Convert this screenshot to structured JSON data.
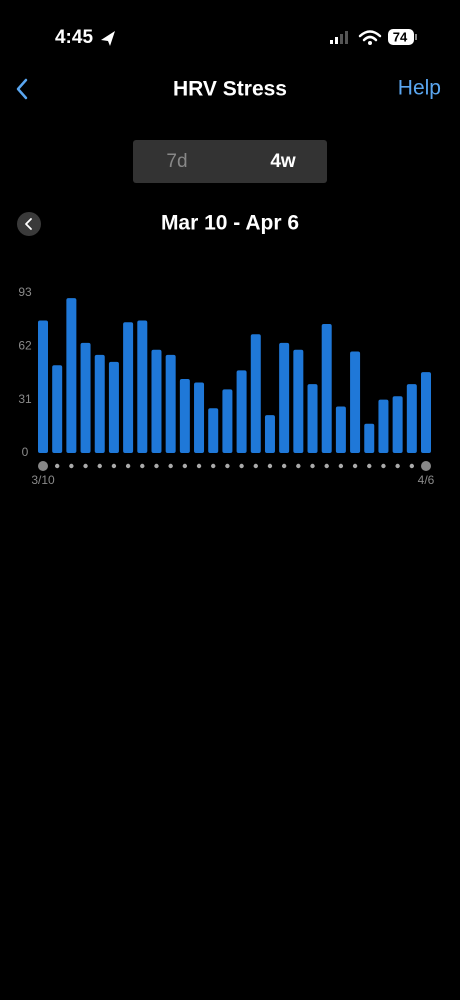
{
  "status_bar": {
    "time": "4:45",
    "battery": "74"
  },
  "header": {
    "title": "HRV Stress",
    "help": "Help"
  },
  "tabs": [
    "7d",
    "4w"
  ],
  "date_range": "Mar 10 - Apr 6",
  "chart_data": {
    "type": "bar",
    "categories": [
      "3/10",
      null,
      null,
      null,
      null,
      null,
      null,
      null,
      null,
      null,
      null,
      null,
      null,
      null,
      null,
      null,
      null,
      null,
      null,
      null,
      null,
      null,
      null,
      null,
      null,
      null,
      null,
      "4/6"
    ],
    "values": [
      77,
      51,
      90,
      64,
      57,
      53,
      76,
      77,
      60,
      57,
      43,
      41,
      26,
      37,
      48,
      69,
      22,
      64,
      60,
      40,
      75,
      27,
      59,
      17,
      31,
      33,
      40,
      47
    ],
    "color": "#1f78d8",
    "ylim": [
      0,
      93
    ],
    "yticks": [
      0,
      31,
      62,
      93
    ],
    "grid": false
  }
}
